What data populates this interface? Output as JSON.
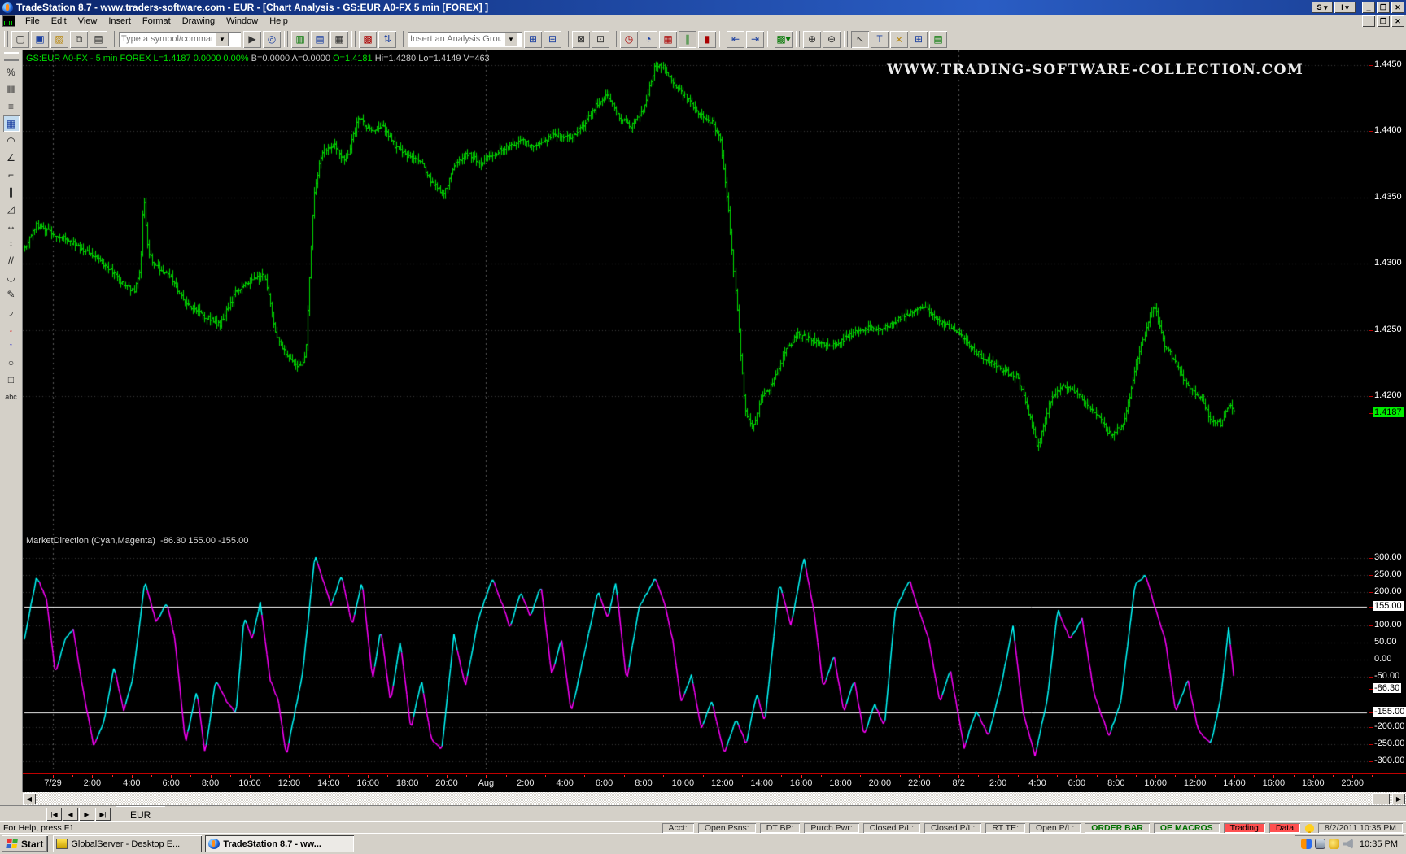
{
  "window": {
    "title": "TradeStation 8.7 - www.traders-software.com - EUR - [Chart Analysis - GS:EUR A0-FX 5 min [FOREX] ]",
    "shortcut_buttons": [
      "S",
      "I"
    ]
  },
  "menu_bar": {
    "items": [
      "File",
      "Edit",
      "View",
      "Insert",
      "Format",
      "Drawing",
      "Window",
      "Help"
    ]
  },
  "toolbar": {
    "symbol_combo": {
      "placeholder": "Type a symbol/command"
    },
    "analysis_combo": {
      "placeholder": "Insert an Analysis Group"
    },
    "buttons": [
      "new-workspace",
      "save-workspace",
      "open-workspace",
      "copy-window",
      "print",
      "run-command",
      "symbol-lookup",
      "format-symbol",
      "format-analysis",
      "data-window",
      "chart-analysis",
      "sort-bars",
      "save-analysis-group",
      "manage-analysis-group",
      "send-backward",
      "bring-forward",
      "session-hours",
      "time-interval",
      "chart-type",
      "bar-style",
      "candlestick-style",
      "decrease-bar-spacing",
      "increase-bar-spacing",
      "drawing-mode-dropdown",
      "zoom-in",
      "zoom-out",
      "pointer-mode",
      "chart-text",
      "toolbox",
      "insert-window",
      "notepad"
    ]
  },
  "left_toolbar": {
    "tools": [
      "percent-lines-tool",
      "vertical-grid-tool",
      "horizontal-grid-tool",
      "grid-calculator-tool",
      "arc-tool",
      "gann-fan-tool",
      "stairstep-tool",
      "speed-lines-tool",
      "trend-angle-tool",
      "horizontal-extend-tool",
      "vertical-extend-tool",
      "parallel-lines-tool",
      "cycle-arc-tool",
      "pencil-tool",
      "curve-tool",
      "down-arrow-marker-tool",
      "up-arrow-marker-tool",
      "ellipse-tool",
      "rectangle-tool",
      "text-tool"
    ],
    "selected": "grid-calculator-tool"
  },
  "chart": {
    "symbol_line_segments": [
      {
        "text": "GS:EUR A0-FX - 5 min  FOREX  L=1.4187  0.0000  0.00%  ",
        "color": "#00e000"
      },
      {
        "text": "B=0.0000  A=0.0000  ",
        "color": "#c8c8c8"
      },
      {
        "text": "O=1.4181  ",
        "color": "#00e000"
      },
      {
        "text": "Hi=1.4280  Lo=1.4149  V=463",
        "color": "#c8c8c8"
      }
    ],
    "watermark": "WWW.TRADING-SOFTWARE-COLLECTION.COM",
    "indicator_label": "MarketDirection (Cyan,Magenta)",
    "indicator_values": "-86.30  155.00  -155.00"
  },
  "chart_data": [
    {
      "type": "ohlc-bar",
      "name": "GS:EUR A0-FX 5 min FOREX",
      "bar_color": "#00dd00",
      "ylim": [
        1.41,
        1.4461
      ],
      "y_ticks": [
        1.445,
        1.44,
        1.435,
        1.43,
        1.425,
        1.42
      ],
      "last_price": 1.4187,
      "open": 1.4181,
      "high": 1.428,
      "low": 1.4149,
      "volume": 463,
      "price_path": [
        [
          30,
          1.4312
        ],
        [
          45,
          1.433
        ],
        [
          70,
          1.4322
        ],
        [
          100,
          1.431
        ],
        [
          130,
          1.43
        ],
        [
          150,
          1.4285
        ],
        [
          165,
          1.4278
        ],
        [
          172,
          1.4296
        ],
        [
          176,
          1.4352
        ],
        [
          182,
          1.4308
        ],
        [
          190,
          1.43
        ],
        [
          210,
          1.429
        ],
        [
          230,
          1.4268
        ],
        [
          250,
          1.426
        ],
        [
          270,
          1.4255
        ],
        [
          290,
          1.428
        ],
        [
          310,
          1.4287
        ],
        [
          325,
          1.429
        ],
        [
          340,
          1.4246
        ],
        [
          355,
          1.4228
        ],
        [
          368,
          1.4222
        ],
        [
          375,
          1.423
        ],
        [
          385,
          1.4348
        ],
        [
          395,
          1.4383
        ],
        [
          410,
          1.439
        ],
        [
          425,
          1.4379
        ],
        [
          440,
          1.4411
        ],
        [
          455,
          1.4399
        ],
        [
          470,
          1.4404
        ],
        [
          485,
          1.439
        ],
        [
          500,
          1.4382
        ],
        [
          515,
          1.4379
        ],
        [
          530,
          1.436
        ],
        [
          545,
          1.4352
        ],
        [
          560,
          1.4378
        ],
        [
          575,
          1.4384
        ],
        [
          590,
          1.4376
        ],
        [
          605,
          1.438
        ],
        [
          620,
          1.4387
        ],
        [
          640,
          1.4394
        ],
        [
          660,
          1.4389
        ],
        [
          680,
          1.4397
        ],
        [
          700,
          1.4394
        ],
        [
          715,
          1.4404
        ],
        [
          730,
          1.4419
        ],
        [
          745,
          1.4427
        ],
        [
          760,
          1.4409
        ],
        [
          775,
          1.4404
        ],
        [
          790,
          1.4417
        ],
        [
          805,
          1.4451
        ],
        [
          815,
          1.4447
        ],
        [
          830,
          1.4434
        ],
        [
          845,
          1.4424
        ],
        [
          860,
          1.4414
        ],
        [
          875,
          1.4407
        ],
        [
          885,
          1.4394
        ],
        [
          895,
          1.434
        ],
        [
          905,
          1.4268
        ],
        [
          915,
          1.419
        ],
        [
          925,
          1.4175
        ],
        [
          935,
          1.42
        ],
        [
          950,
          1.4211
        ],
        [
          965,
          1.4234
        ],
        [
          980,
          1.4245
        ],
        [
          1000,
          1.4242
        ],
        [
          1020,
          1.4238
        ],
        [
          1040,
          1.4244
        ],
        [
          1060,
          1.425
        ],
        [
          1080,
          1.4252
        ],
        [
          1100,
          1.4257
        ],
        [
          1120,
          1.4262
        ],
        [
          1135,
          1.4267
        ],
        [
          1150,
          1.4259
        ],
        [
          1165,
          1.4254
        ],
        [
          1180,
          1.4247
        ],
        [
          1195,
          1.4234
        ],
        [
          1210,
          1.4227
        ],
        [
          1230,
          1.4221
        ],
        [
          1250,
          1.4216
        ],
        [
          1265,
          1.4184
        ],
        [
          1275,
          1.416
        ],
        [
          1290,
          1.4196
        ],
        [
          1305,
          1.4209
        ],
        [
          1320,
          1.4204
        ],
        [
          1335,
          1.4194
        ],
        [
          1350,
          1.4184
        ],
        [
          1365,
          1.4169
        ],
        [
          1380,
          1.418
        ],
        [
          1395,
          1.4221
        ],
        [
          1410,
          1.4254
        ],
        [
          1418,
          1.4269
        ],
        [
          1430,
          1.4239
        ],
        [
          1445,
          1.4224
        ],
        [
          1460,
          1.4209
        ],
        [
          1475,
          1.4199
        ],
        [
          1488,
          1.4181
        ],
        [
          1500,
          1.4178
        ],
        [
          1510,
          1.4194
        ],
        [
          1518,
          1.4187
        ]
      ]
    },
    {
      "type": "line",
      "name": "MarketDirection",
      "colors": {
        "up": "#00ffff",
        "down": "#ff00ff"
      },
      "ylim": [
        -338,
        362
      ],
      "y_ticks": [
        300,
        250,
        200,
        155,
        100,
        50,
        0,
        -50,
        -86.3,
        -155,
        -200,
        -250,
        -300
      ],
      "highlighted_ticks": [
        155,
        -86.3,
        -155
      ],
      "hlines": [
        155,
        -155
      ],
      "current_value": -86.3,
      "upper_band": 155,
      "lower_band": -155,
      "points": [
        [
          30,
          60
        ],
        [
          45,
          245
        ],
        [
          57,
          180
        ],
        [
          68,
          -40
        ],
        [
          80,
          60
        ],
        [
          90,
          90
        ],
        [
          100,
          -60
        ],
        [
          115,
          -255
        ],
        [
          128,
          -180
        ],
        [
          140,
          -20
        ],
        [
          152,
          -150
        ],
        [
          163,
          -60
        ],
        [
          178,
          230
        ],
        [
          192,
          110
        ],
        [
          205,
          170
        ],
        [
          215,
          60
        ],
        [
          228,
          -245
        ],
        [
          242,
          -90
        ],
        [
          252,
          -280
        ],
        [
          265,
          -60
        ],
        [
          278,
          -120
        ],
        [
          290,
          -160
        ],
        [
          300,
          125
        ],
        [
          310,
          60
        ],
        [
          320,
          170
        ],
        [
          332,
          -60
        ],
        [
          342,
          -120
        ],
        [
          352,
          -285
        ],
        [
          362,
          -160
        ],
        [
          372,
          -40
        ],
        [
          387,
          310
        ],
        [
          397,
          235
        ],
        [
          407,
          160
        ],
        [
          420,
          250
        ],
        [
          433,
          100
        ],
        [
          445,
          230
        ],
        [
          458,
          -60
        ],
        [
          468,
          90
        ],
        [
          480,
          -125
        ],
        [
          492,
          55
        ],
        [
          505,
          -205
        ],
        [
          518,
          -60
        ],
        [
          530,
          -235
        ],
        [
          543,
          -265
        ],
        [
          558,
          75
        ],
        [
          572,
          -80
        ],
        [
          588,
          120
        ],
        [
          605,
          240
        ],
        [
          617,
          165
        ],
        [
          627,
          95
        ],
        [
          640,
          200
        ],
        [
          652,
          125
        ],
        [
          665,
          220
        ],
        [
          678,
          -45
        ],
        [
          690,
          60
        ],
        [
          702,
          -155
        ],
        [
          712,
          -50
        ],
        [
          735,
          205
        ],
        [
          747,
          120
        ],
        [
          757,
          230
        ],
        [
          770,
          -65
        ],
        [
          785,
          150
        ],
        [
          805,
          240
        ],
        [
          817,
          165
        ],
        [
          827,
          55
        ],
        [
          837,
          -125
        ],
        [
          850,
          -45
        ],
        [
          862,
          -205
        ],
        [
          875,
          -120
        ],
        [
          890,
          -280
        ],
        [
          905,
          -175
        ],
        [
          917,
          -250
        ],
        [
          930,
          -100
        ],
        [
          940,
          -185
        ],
        [
          958,
          225
        ],
        [
          972,
          100
        ],
        [
          988,
          300
        ],
        [
          1000,
          150
        ],
        [
          1012,
          -85
        ],
        [
          1025,
          15
        ],
        [
          1037,
          -155
        ],
        [
          1050,
          -60
        ],
        [
          1062,
          -225
        ],
        [
          1075,
          -130
        ],
        [
          1087,
          -200
        ],
        [
          1100,
          145
        ],
        [
          1118,
          235
        ],
        [
          1130,
          140
        ],
        [
          1142,
          55
        ],
        [
          1155,
          -125
        ],
        [
          1168,
          -30
        ],
        [
          1185,
          -260
        ],
        [
          1200,
          -150
        ],
        [
          1215,
          -225
        ],
        [
          1230,
          -80
        ],
        [
          1245,
          100
        ],
        [
          1257,
          -150
        ],
        [
          1272,
          -285
        ],
        [
          1287,
          -120
        ],
        [
          1300,
          150
        ],
        [
          1315,
          60
        ],
        [
          1330,
          120
        ],
        [
          1345,
          -105
        ],
        [
          1363,
          -225
        ],
        [
          1377,
          -130
        ],
        [
          1395,
          220
        ],
        [
          1408,
          250
        ],
        [
          1420,
          150
        ],
        [
          1432,
          60
        ],
        [
          1445,
          -155
        ],
        [
          1460,
          -60
        ],
        [
          1472,
          -205
        ],
        [
          1488,
          -250
        ],
        [
          1500,
          -120
        ],
        [
          1510,
          95
        ],
        [
          1518,
          -86.3
        ]
      ]
    }
  ],
  "time_axis": {
    "labels": [
      "7/29",
      "2:00",
      "4:00",
      "6:00",
      "8:00",
      "10:00",
      "12:00",
      "14:00",
      "16:00",
      "18:00",
      "20:00",
      "Aug",
      "2:00",
      "4:00",
      "6:00",
      "8:00",
      "10:00",
      "12:00",
      "14:00",
      "16:00",
      "18:00",
      "20:00",
      "22:00",
      "8/2",
      "2:00",
      "4:00",
      "6:00",
      "8:00",
      "10:00",
      "12:00",
      "14:00",
      "16:00",
      "18:00",
      "20:00"
    ],
    "session_indices": [
      0,
      11,
      23
    ]
  },
  "tabs": {
    "active": "EUR"
  },
  "status_bar": {
    "help_text": "For Help, press F1",
    "fields": [
      "Acct:",
      "Open Psns:",
      "DT BP:",
      "Purch Pwr:",
      "Closed P/L:",
      "Closed P/L:",
      "RT TE:",
      "Open P/L:"
    ],
    "order_bar": "ORDER BAR",
    "oe_macros": "OE MACROS",
    "alerts": [
      {
        "label": "Trading"
      },
      {
        "label": "Data"
      }
    ],
    "datetime": "8/2/2011 10:35 PM"
  },
  "taskbar": {
    "start": "Start",
    "tasks": [
      {
        "label": "GlobalServer - Desktop E...",
        "icon": "globalserver-icon",
        "active": false
      },
      {
        "label": "TradeStation 8.7 - ww...",
        "icon": "tradestation-icon",
        "active": true
      }
    ],
    "clock": "10:35 PM"
  },
  "colors": {
    "bar_green": "#00dd00",
    "cyan": "#00ffff",
    "magenta": "#ff00ff",
    "axis_red": "#c00000",
    "last_price_bg": "#00ee00",
    "grid": "#3c3c3c",
    "session_line": "#5a5a5a"
  }
}
